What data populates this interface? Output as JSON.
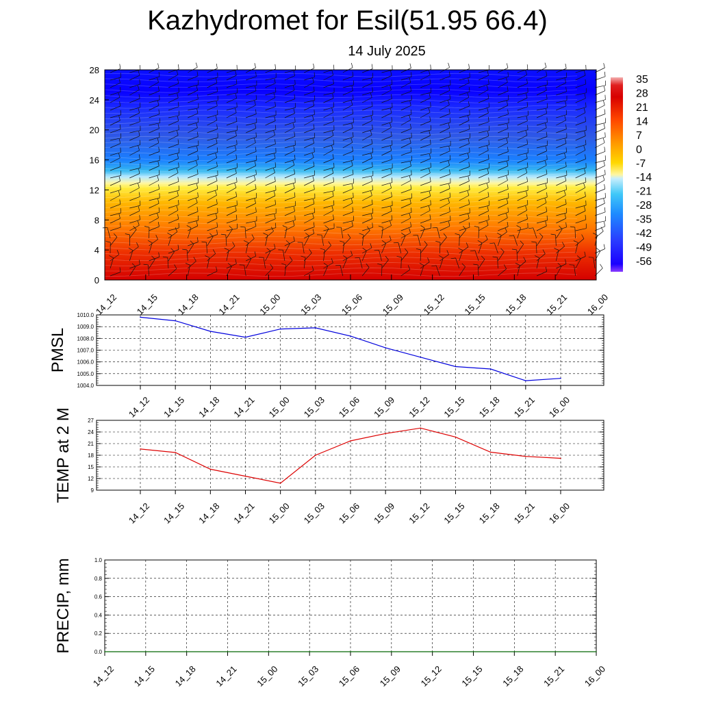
{
  "header": {
    "title": "Kazhydromet for Esil(51.95 66.4)",
    "subtitle": "14 July 2025"
  },
  "colors": {
    "pmsl_line": "#0000dd",
    "temp_line": "#dd0000",
    "precip_line": "#006600",
    "grid": "#000000"
  },
  "chart_data": [
    {
      "type": "heatmap",
      "name": "upper-air temperature and wind cross-section",
      "x": [
        "14_12",
        "14_15",
        "14_18",
        "14_21",
        "15_00",
        "15_03",
        "15_06",
        "15_09",
        "15_12",
        "15_15",
        "15_18",
        "15_21",
        "16_00"
      ],
      "y_ticks": [
        0,
        4,
        8,
        12,
        16,
        20,
        24,
        28
      ],
      "ylim": [
        0,
        28
      ],
      "colorbar": {
        "labels": [
          "35",
          "28",
          "21",
          "14",
          "7",
          "0",
          "-7",
          "-14",
          "-21",
          "-28",
          "-35",
          "-42",
          "-49",
          "-56"
        ],
        "range": [
          -60,
          38
        ]
      },
      "description_layers": {
        "surface_temp": 30,
        "freezing_level_km": 12.5,
        "coldest_temp": -60
      },
      "wind_barbs": true
    },
    {
      "type": "line",
      "ylabel": "PMSL",
      "x": [
        "14_12",
        "14_15",
        "14_18",
        "14_21",
        "15_00",
        "15_03",
        "15_06",
        "15_09",
        "15_12",
        "15_15",
        "15_18",
        "15_21",
        "16_00"
      ],
      "values": [
        1009.8,
        1009.5,
        1008.6,
        1008.1,
        1008.8,
        1008.9,
        1008.2,
        1007.2,
        1006.4,
        1005.6,
        1005.4,
        1004.4,
        1004.6
      ],
      "ylim": [
        1004.0,
        1010.0
      ],
      "y_ticks": [
        "1004.0",
        "1005.0",
        "1006.0",
        "1007.0",
        "1008.0",
        "1009.0",
        "1010.0"
      ],
      "grid": true
    },
    {
      "type": "line",
      "ylabel": "TEMP at 2 M",
      "x": [
        "14_12",
        "14_15",
        "14_18",
        "14_21",
        "15_00",
        "15_03",
        "15_06",
        "15_09",
        "15_12",
        "15_15",
        "15_18",
        "15_21",
        "16_00"
      ],
      "values": [
        19.6,
        18.7,
        14.4,
        12.6,
        10.8,
        18.0,
        21.7,
        23.6,
        25.0,
        22.7,
        18.8,
        17.7,
        17.2
      ],
      "ylim": [
        9,
        27
      ],
      "y_ticks": [
        "9",
        "12",
        "15",
        "18",
        "21",
        "24",
        "27"
      ],
      "grid": true
    },
    {
      "type": "line",
      "ylabel": "PRECIP, mm",
      "x": [
        "14_12",
        "14_15",
        "14_18",
        "14_21",
        "15_00",
        "15_03",
        "15_06",
        "15_09",
        "15_12",
        "15_15",
        "15_18",
        "15_21",
        "16_00"
      ],
      "values": [
        0,
        0,
        0,
        0,
        0,
        0,
        0,
        0,
        0,
        0,
        0,
        0,
        0
      ],
      "ylim": [
        0,
        1
      ],
      "y_ticks": [
        "0.0",
        "0.2",
        "0.4",
        "0.6",
        "0.8",
        "1.0"
      ],
      "grid": true
    }
  ]
}
